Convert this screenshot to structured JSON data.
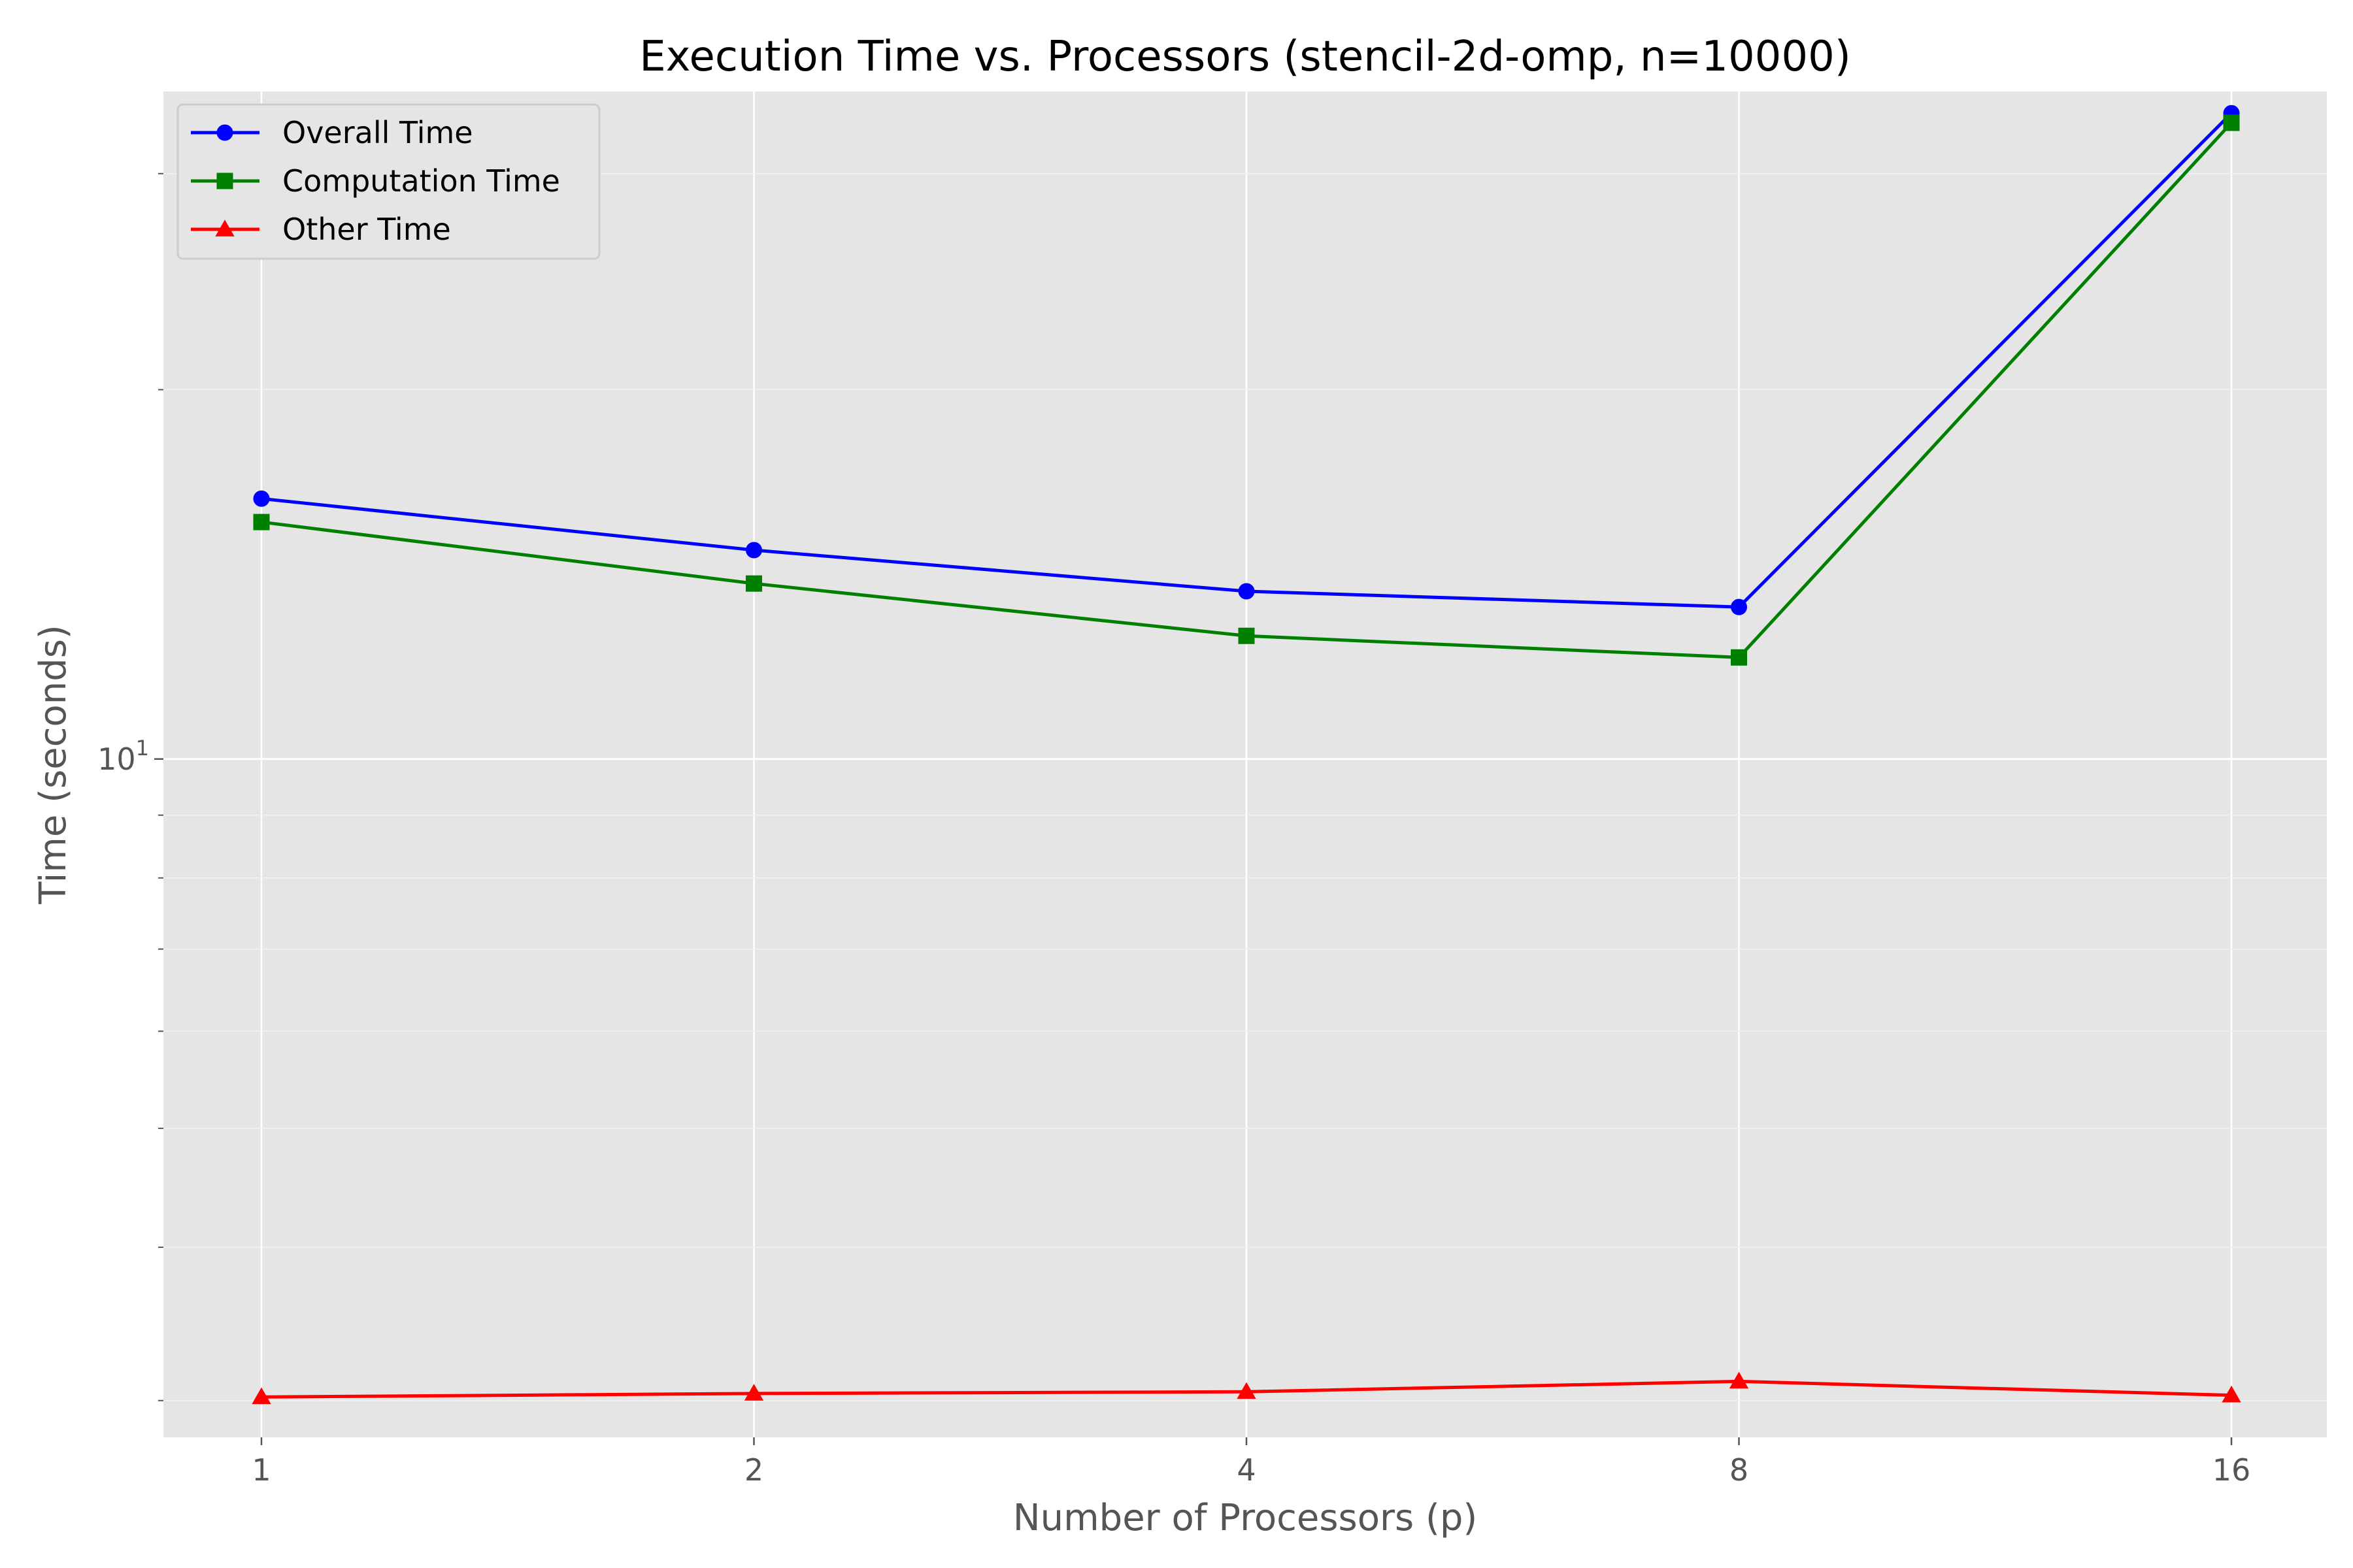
{
  "chart_data": {
    "type": "line",
    "title": "Execution Time vs. Processors (stencil-2d-omp, n=10000)",
    "xlabel": "Number of Processors (p)",
    "ylabel": "Time (seconds)",
    "x_scale": "log2",
    "y_scale": "log",
    "x": [
      1,
      2,
      4,
      8,
      16
    ],
    "xticks": [
      "1",
      "2",
      "4",
      "8",
      16
    ],
    "ylim": [
      2.8,
      35
    ],
    "ytick_major": {
      "value": 10,
      "base": "10",
      "exp": "1"
    },
    "ytick_minor": [
      3,
      4,
      5,
      6,
      7,
      8,
      9,
      20,
      30
    ],
    "grid": true,
    "legend_position": "top-left",
    "series": [
      {
        "name": "Overall Time",
        "color": "#0000ff",
        "marker": "circle",
        "values": [
          16.3,
          14.8,
          13.7,
          13.3,
          33.6
        ]
      },
      {
        "name": "Computation Time",
        "color": "#008000",
        "marker": "square",
        "values": [
          15.6,
          13.9,
          12.6,
          12.1,
          33.0
        ]
      },
      {
        "name": "Other Time",
        "color": "#ff0000",
        "marker": "triangle",
        "values": [
          3.02,
          3.04,
          3.05,
          3.11,
          3.03
        ]
      }
    ]
  }
}
